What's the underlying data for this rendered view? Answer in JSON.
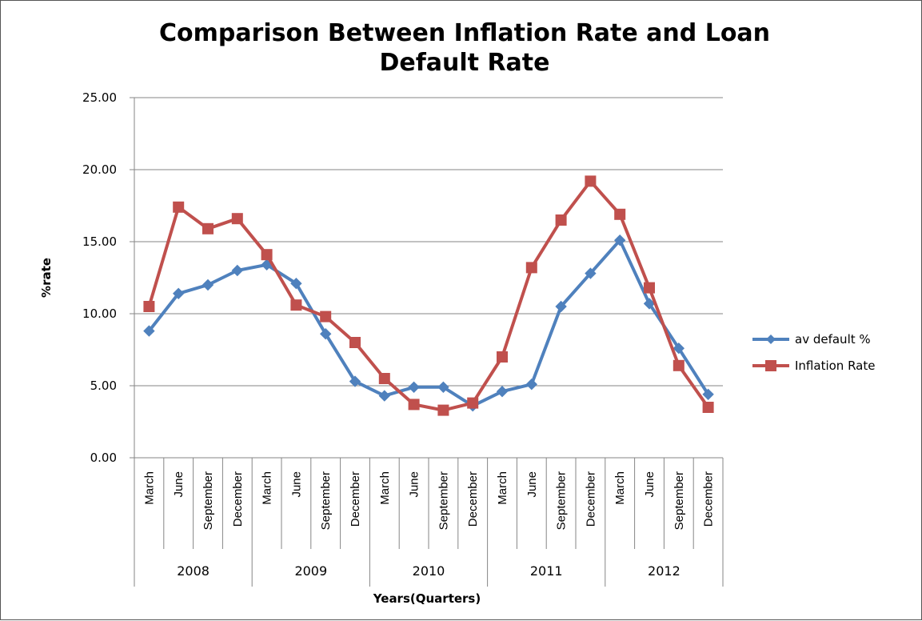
{
  "chart_data": {
    "type": "line",
    "title_line1": "Comparison Between Inflation Rate and Loan",
    "title_line2": "Default Rate",
    "ylabel": "%rate",
    "xlabel": "Years(Quarters)",
    "ylim": [
      0,
      25
    ],
    "yticks": [
      "0.00",
      "5.00",
      "10.00",
      "15.00",
      "20.00",
      "25.00"
    ],
    "grid": true,
    "legend_position": "right",
    "years": [
      "2008",
      "2009",
      "2010",
      "2011",
      "2012"
    ],
    "categories": [
      "March",
      "June",
      "September",
      "December",
      "March",
      "June",
      "September",
      "December",
      "March",
      "June",
      "September",
      "December",
      "March",
      "June",
      "September",
      "December",
      "March",
      "June",
      "September",
      "December"
    ],
    "series": [
      {
        "name": "av default %",
        "color": "#4F81BD",
        "marker": "diamond",
        "values": [
          8.8,
          11.4,
          12.0,
          13.0,
          13.4,
          12.1,
          8.6,
          5.3,
          4.3,
          4.9,
          4.9,
          3.6,
          4.6,
          5.1,
          10.5,
          12.8,
          15.1,
          10.7,
          7.6,
          4.4
        ]
      },
      {
        "name": "Inflation Rate",
        "color": "#C0504D",
        "marker": "square",
        "values": [
          10.5,
          17.4,
          15.9,
          16.6,
          14.1,
          10.6,
          9.8,
          8.0,
          5.5,
          3.7,
          3.3,
          3.8,
          7.0,
          13.2,
          16.5,
          19.2,
          16.9,
          11.8,
          6.4,
          3.5
        ]
      }
    ]
  }
}
